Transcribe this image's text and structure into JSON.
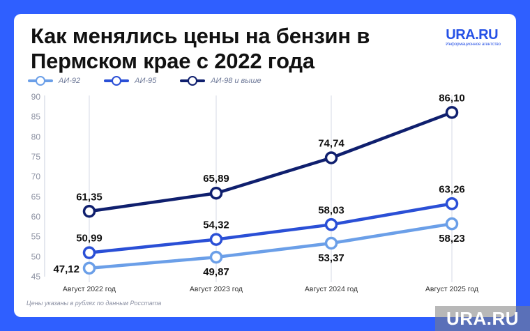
{
  "title": "Как менялись цены на бензин в Пермском крае с 2022 года",
  "brand": {
    "name": "URA.RU",
    "subtitle": "Информационное агентство"
  },
  "footnote": "Цены указаны в рублях по данным Росстата",
  "watermark": "URA.RU",
  "colors": {
    "background": "#2f5fff",
    "ai92": "#6b9fe8",
    "ai95": "#2a4fd6",
    "ai98": "#0f1f6e"
  },
  "chart_data": {
    "type": "line",
    "categories": [
      "Август 2022 год",
      "Август 2023 год",
      "Август 2024 год",
      "Август 2025 год"
    ],
    "ylim": [
      45,
      90
    ],
    "yticks": [
      45,
      50,
      55,
      60,
      65,
      70,
      75,
      80,
      85,
      90
    ],
    "grid": "vertical",
    "legend": "top-left",
    "series": [
      {
        "name": "АИ-92",
        "values": [
          47.12,
          49.87,
          53.37,
          58.23
        ],
        "labels": [
          "47,12",
          "49,87",
          "53,37",
          "58,23"
        ],
        "color": "#6b9fe8",
        "label_pos": [
          "left",
          "below",
          "below",
          "below"
        ]
      },
      {
        "name": "АИ-95",
        "values": [
          50.99,
          54.32,
          58.03,
          63.26
        ],
        "labels": [
          "50,99",
          "54,32",
          "58,03",
          "63,26"
        ],
        "color": "#2a4fd6",
        "label_pos": [
          "above",
          "above",
          "above",
          "above"
        ]
      },
      {
        "name": "АИ-98 и выше",
        "values": [
          61.35,
          65.89,
          74.74,
          86.1
        ],
        "labels": [
          "61,35",
          "65,89",
          "74,74",
          "86,10"
        ],
        "color": "#0f1f6e",
        "label_pos": [
          "above",
          "above",
          "above",
          "above"
        ]
      }
    ]
  }
}
